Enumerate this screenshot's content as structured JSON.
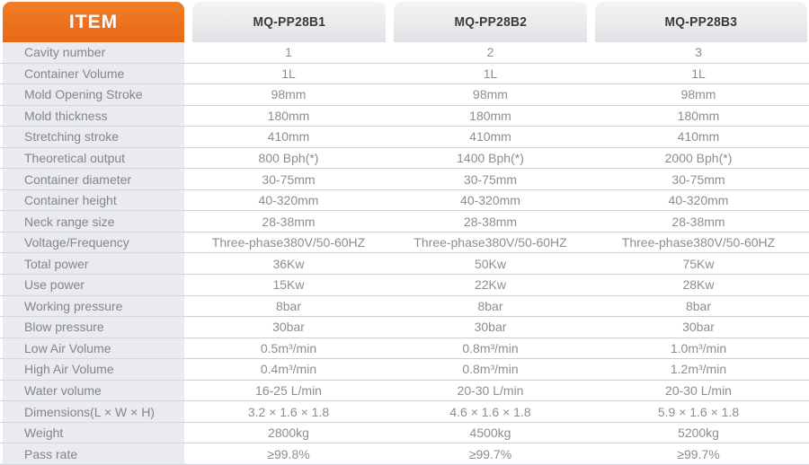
{
  "header": {
    "item_label": "ITEM",
    "columns": [
      "MQ-PP28B1",
      "MQ-PP28B2",
      "MQ-PP28B3"
    ]
  },
  "colors": {
    "accent_orange": "#ec7220",
    "header_block_gray": "#e7e8ea",
    "header_text_dark": "#3a3a3c",
    "label_column_bg": "#e9ebee",
    "body_text_gray": "#8b8e91",
    "separator_line": "#cdcfd2"
  },
  "table": {
    "rows": [
      {
        "label": "Cavity number",
        "values": [
          "1",
          "2",
          "3"
        ]
      },
      {
        "label": "Container Volume",
        "values": [
          "1L",
          "1L",
          "1L"
        ]
      },
      {
        "label": "Mold Opening Stroke",
        "values": [
          "98mm",
          "98mm",
          "98mm"
        ]
      },
      {
        "label": "Mold thickness",
        "values": [
          "180mm",
          "180mm",
          "180mm"
        ]
      },
      {
        "label": "Stretching stroke",
        "values": [
          "410mm",
          "410mm",
          "410mm"
        ]
      },
      {
        "label": "Theoretical output",
        "values": [
          "800 Bph(*)",
          "1400 Bph(*)",
          "2000 Bph(*)"
        ]
      },
      {
        "label": "Container diameter",
        "values": [
          "30-75mm",
          "30-75mm",
          "30-75mm"
        ]
      },
      {
        "label": "Container height",
        "values": [
          "40-320mm",
          "40-320mm",
          "40-320mm"
        ]
      },
      {
        "label": "Neck range size",
        "values": [
          "28-38mm",
          "28-38mm",
          "28-38mm"
        ]
      },
      {
        "label": "Voltage/Frequency",
        "values": [
          "Three-phase380V/50-60HZ",
          "Three-phase380V/50-60HZ",
          "Three-phase380V/50-60HZ"
        ]
      },
      {
        "label": "Total power",
        "values": [
          "36Kw",
          "50Kw",
          "75Kw"
        ]
      },
      {
        "label": "Use power",
        "values": [
          "15Kw",
          "22Kw",
          "28Kw"
        ]
      },
      {
        "label": "Working pressure",
        "values": [
          "8bar",
          "8bar",
          "8bar"
        ]
      },
      {
        "label": "Blow pressure",
        "values": [
          "30bar",
          "30bar",
          "30bar"
        ]
      },
      {
        "label": "Low Air Volume",
        "values": [
          "0.5m³/min",
          "0.8m³/min",
          "1.0m³/min"
        ]
      },
      {
        "label": "High Air Volume",
        "values": [
          "0.4m³/min",
          "0.8m³/min",
          "1.2m³/min"
        ]
      },
      {
        "label": "Water volume",
        "values": [
          "16-25 L/min",
          "20-30 L/min",
          "20-30 L/min"
        ]
      },
      {
        "label": "Dimensions(L × W × H)",
        "values": [
          "3.2 × 1.6 × 1.8",
          "4.6 × 1.6 × 1.8",
          "5.9 × 1.6 × 1.8"
        ]
      },
      {
        "label": "Weight",
        "values": [
          "2800kg",
          "4500kg",
          "5200kg"
        ]
      },
      {
        "label": "Pass rate",
        "values": [
          "≥99.8%",
          "≥99.7%",
          "≥99.7%"
        ]
      }
    ]
  }
}
